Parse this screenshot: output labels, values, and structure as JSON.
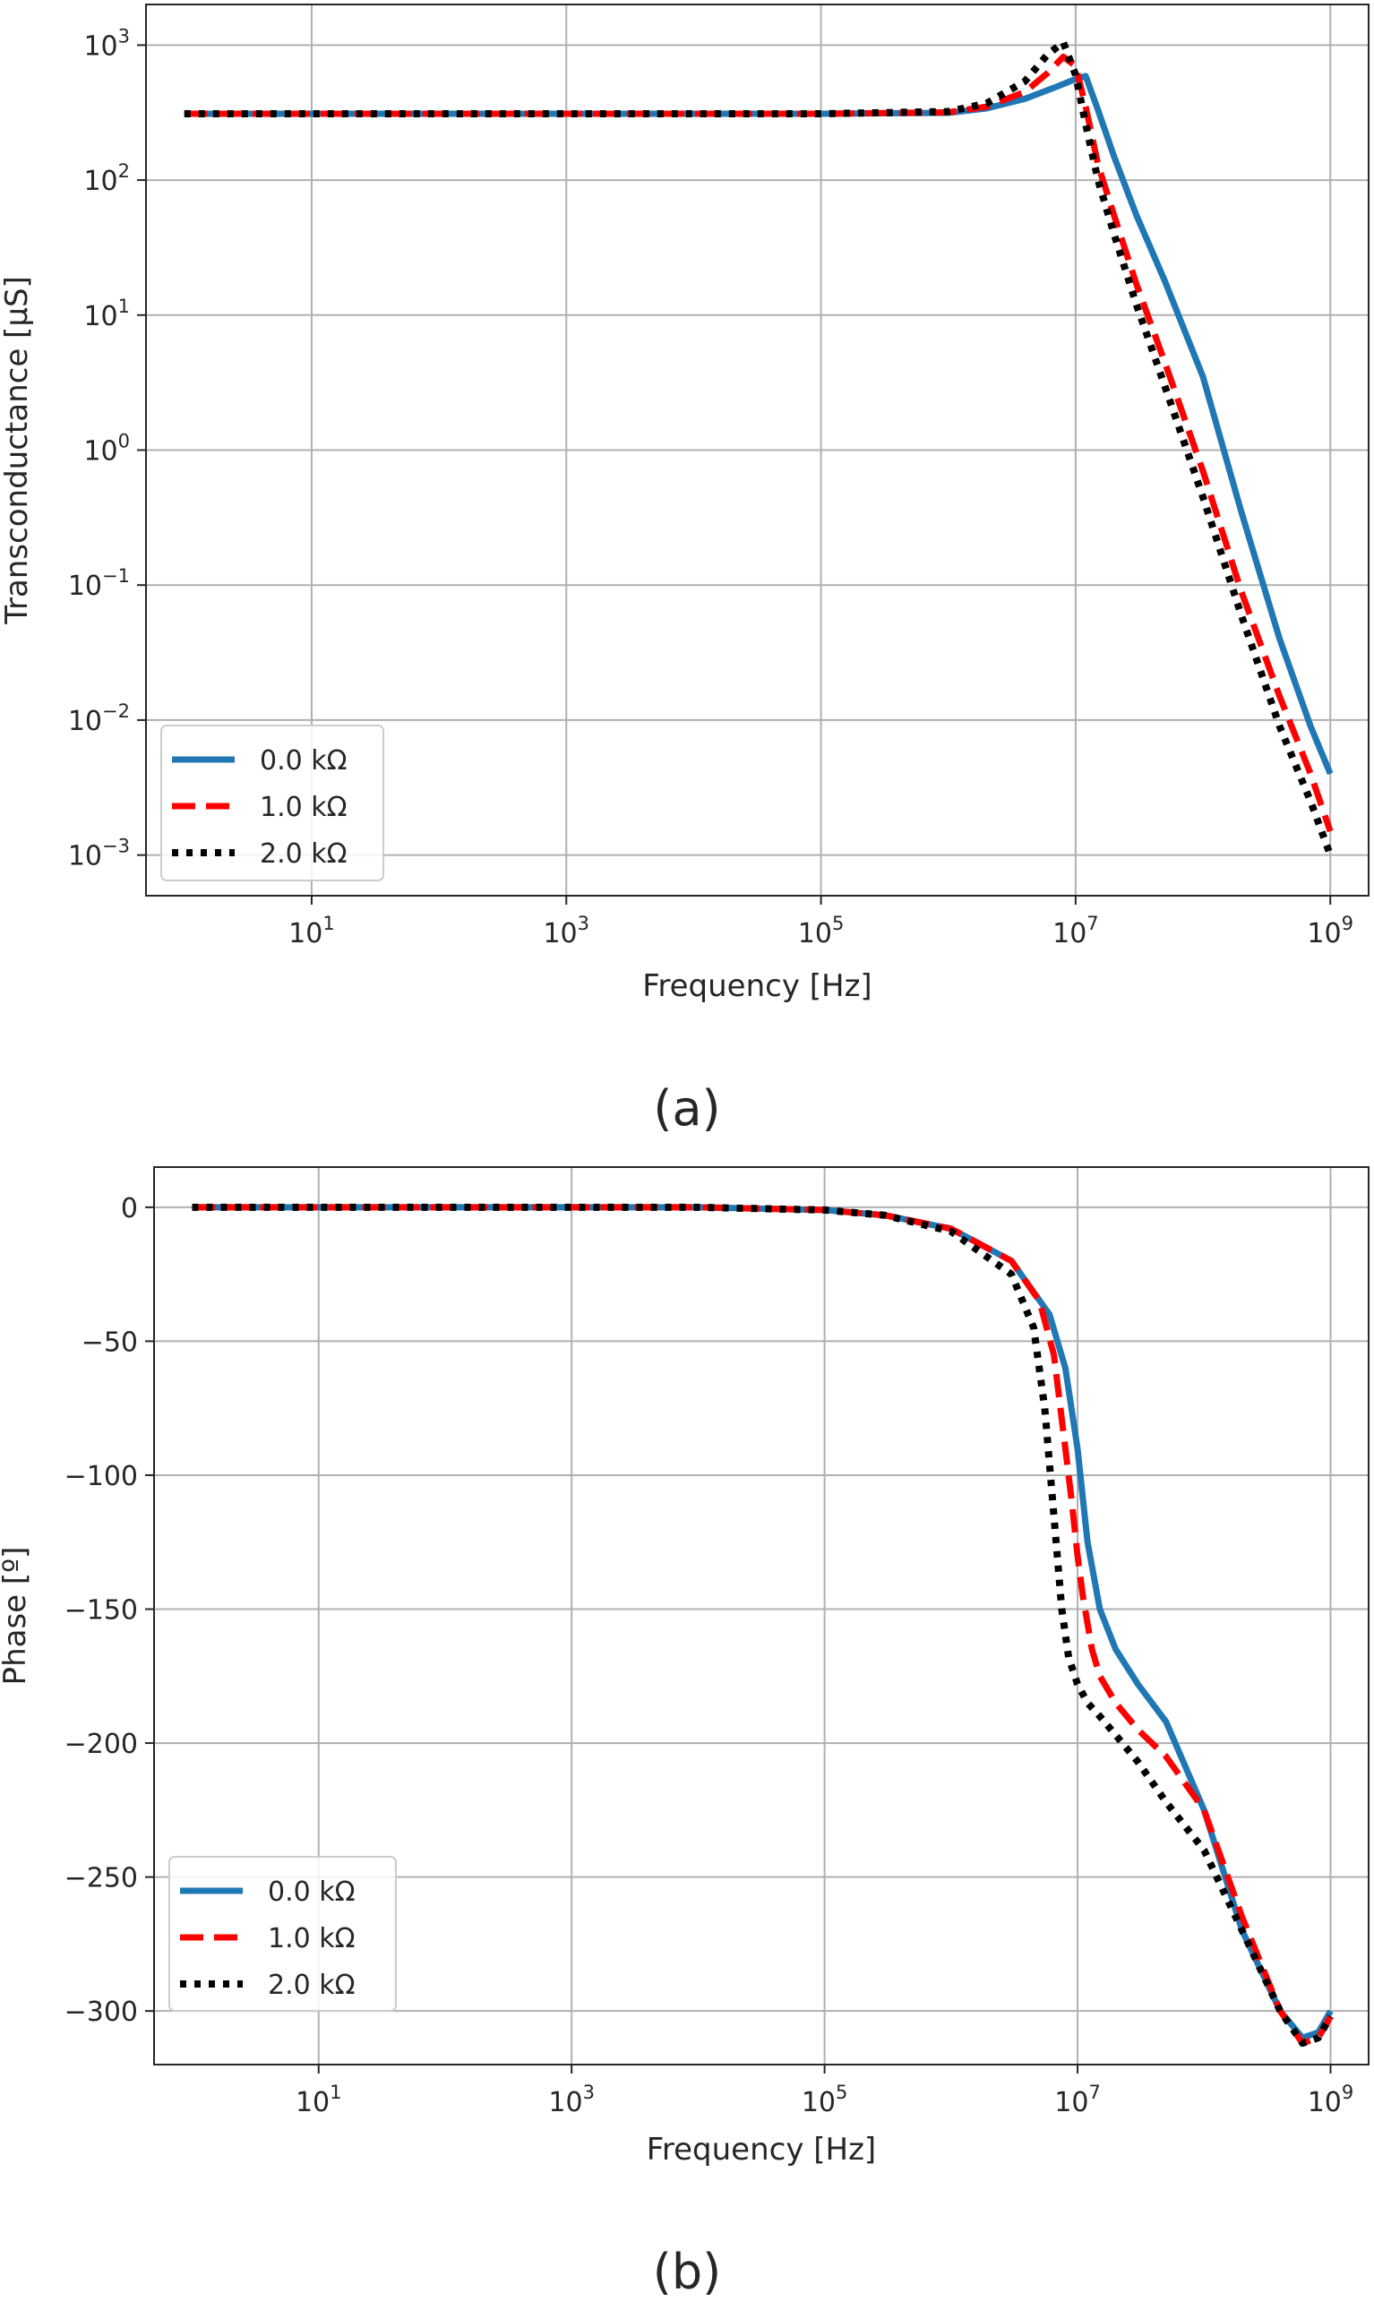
{
  "chart_data": [
    {
      "type": "line",
      "caption": "(a)",
      "xlabel": "Frequency [Hz]",
      "ylabel": "Transconductance [µS]",
      "xscale": "log",
      "yscale": "log",
      "xlim": [
        0.5,
        2000000000
      ],
      "ylim": [
        0.0005,
        2000
      ],
      "grid": true,
      "legend_position": "lower-left",
      "xtick_labels": [
        {
          "base": "10",
          "exp": "1",
          "value": 10
        },
        {
          "base": "10",
          "exp": "3",
          "value": 1000
        },
        {
          "base": "10",
          "exp": "5",
          "value": 100000
        },
        {
          "base": "10",
          "exp": "7",
          "value": 10000000
        },
        {
          "base": "10",
          "exp": "9",
          "value": 1000000000
        }
      ],
      "ytick_labels": [
        {
          "base": "10",
          "exp": "−3",
          "value": 0.001
        },
        {
          "base": "10",
          "exp": "−2",
          "value": 0.01
        },
        {
          "base": "10",
          "exp": "−1",
          "value": 0.1
        },
        {
          "base": "10",
          "exp": "0",
          "value": 1
        },
        {
          "base": "10",
          "exp": "1",
          "value": 10
        },
        {
          "base": "10",
          "exp": "2",
          "value": 100
        },
        {
          "base": "10",
          "exp": "3",
          "value": 1000
        }
      ],
      "series": [
        {
          "name": "0.0 kΩ",
          "color": "#1f77b4",
          "style": "solid",
          "x": [
            1,
            10,
            100,
            1000,
            10000,
            100000,
            1000000,
            2000000,
            4000000,
            7000000,
            10000000,
            12000000,
            15000000,
            20000000,
            30000000,
            50000000,
            100000000,
            200000000,
            400000000,
            700000000,
            1000000000
          ],
          "y": [
            310,
            310,
            310,
            310,
            310,
            310,
            315,
            340,
            400,
            490,
            560,
            590,
            330,
            150,
            55,
            18,
            3.5,
            0.35,
            0.04,
            0.009,
            0.004
          ]
        },
        {
          "name": "1.0 kΩ",
          "color": "#ff0000",
          "style": "dashed",
          "x": [
            1,
            10,
            100,
            1000,
            10000,
            100000,
            1000000,
            2000000,
            4000000,
            6000000,
            8000000,
            10000000,
            12000000,
            15000000,
            20000000,
            30000000,
            50000000,
            100000000,
            200000000,
            400000000,
            700000000,
            1000000000
          ],
          "y": [
            310,
            310,
            310,
            310,
            310,
            310,
            318,
            350,
            450,
            620,
            820,
            700,
            350,
            130,
            55,
            17,
            4.5,
            0.7,
            0.09,
            0.015,
            0.004,
            0.0015
          ]
        },
        {
          "name": "2.0 kΩ",
          "color": "#000000",
          "style": "dotted",
          "x": [
            1,
            10,
            100,
            1000,
            10000,
            100000,
            1000000,
            2000000,
            4000000,
            6000000,
            8000000,
            10000000,
            12000000,
            15000000,
            20000000,
            30000000,
            50000000,
            100000000,
            200000000,
            400000000,
            700000000,
            1000000000
          ],
          "y": [
            310,
            310,
            310,
            310,
            310,
            310,
            322,
            370,
            540,
            850,
            1050,
            600,
            260,
            100,
            40,
            12,
            3,
            0.45,
            0.06,
            0.009,
            0.0025,
            0.001
          ]
        }
      ]
    },
    {
      "type": "line",
      "caption": "(b)",
      "xlabel": "Frequency [Hz]",
      "ylabel": "Phase [º]",
      "xscale": "log",
      "yscale": "linear",
      "xlim": [
        0.5,
        2000000000
      ],
      "ylim": [
        -320,
        15
      ],
      "grid": true,
      "legend_position": "lower-left",
      "xtick_labels": [
        {
          "base": "10",
          "exp": "1",
          "value": 10
        },
        {
          "base": "10",
          "exp": "3",
          "value": 1000
        },
        {
          "base": "10",
          "exp": "5",
          "value": 100000
        },
        {
          "base": "10",
          "exp": "7",
          "value": 10000000
        },
        {
          "base": "10",
          "exp": "9",
          "value": 1000000000
        }
      ],
      "ytick_labels": [
        {
          "text": "0",
          "value": 0
        },
        {
          "text": "−50",
          "value": -50
        },
        {
          "text": "−100",
          "value": -100
        },
        {
          "text": "−150",
          "value": -150
        },
        {
          "text": "−200",
          "value": -200
        },
        {
          "text": "−250",
          "value": -250
        },
        {
          "text": "−300",
          "value": -300
        }
      ],
      "series": [
        {
          "name": "0.0 kΩ",
          "color": "#1f77b4",
          "style": "solid",
          "x": [
            1,
            10,
            100,
            1000,
            10000,
            100000,
            300000,
            1000000,
            3000000,
            6000000,
            8000000,
            10000000,
            12000000,
            15000000,
            20000000,
            30000000,
            50000000,
            100000000,
            200000000,
            400000000,
            600000000,
            800000000,
            1000000000
          ],
          "y": [
            0,
            0,
            0,
            0,
            0,
            -1,
            -3,
            -8,
            -20,
            -40,
            -60,
            -90,
            -125,
            -150,
            -165,
            -178,
            -192,
            -225,
            -270,
            -300,
            -310,
            -308,
            -300
          ]
        },
        {
          "name": "1.0 kΩ",
          "color": "#ff0000",
          "style": "dashed",
          "x": [
            1,
            10,
            100,
            1000,
            10000,
            100000,
            300000,
            1000000,
            3000000,
            5000000,
            6500000,
            8000000,
            9000000,
            10000000,
            11000000,
            13000000,
            15000000,
            20000000,
            30000000,
            50000000,
            100000000,
            200000000,
            400000000,
            600000000,
            800000000,
            1000000000
          ],
          "y": [
            0,
            0,
            0,
            0,
            0,
            -1,
            -3,
            -8,
            -20,
            -35,
            -55,
            -90,
            -110,
            -130,
            -145,
            -165,
            -175,
            -185,
            -195,
            -205,
            -225,
            -265,
            -300,
            -312,
            -310,
            -302
          ]
        },
        {
          "name": "2.0 kΩ",
          "color": "#000000",
          "style": "dotted",
          "x": [
            1,
            10,
            100,
            1000,
            10000,
            100000,
            300000,
            1000000,
            3000000,
            4500000,
            5500000,
            6500000,
            7500000,
            8500000,
            10000000,
            12000000,
            15000000,
            20000000,
            30000000,
            50000000,
            100000000,
            200000000,
            400000000,
            600000000,
            800000000,
            1000000000
          ],
          "y": [
            0,
            0,
            0,
            0,
            0,
            -1,
            -3,
            -9,
            -25,
            -45,
            -75,
            -115,
            -150,
            -168,
            -178,
            -185,
            -190,
            -197,
            -207,
            -222,
            -240,
            -270,
            -300,
            -312,
            -310,
            -302
          ]
        }
      ]
    }
  ]
}
